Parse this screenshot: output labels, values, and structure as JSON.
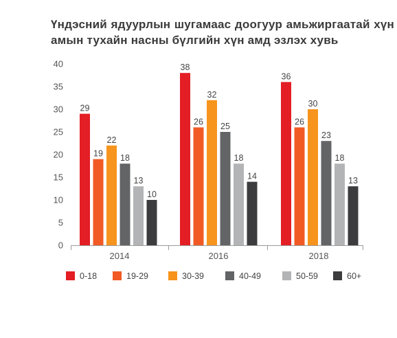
{
  "chart_data": {
    "type": "bar",
    "title": "Үндэсний ядуурлын шугамаас  доогуур амьжиргаатай хүн амын тухайн насны бүлгийн хүн амд эзлэх хувь",
    "categories": [
      "2014",
      "2016",
      "2018"
    ],
    "series": [
      {
        "name": "0-18",
        "color": "#e31e24",
        "values": [
          29,
          38,
          36
        ]
      },
      {
        "name": "19-29",
        "color": "#f15a24",
        "values": [
          19,
          26,
          26
        ]
      },
      {
        "name": "30-39",
        "color": "#f7941d",
        "values": [
          22,
          32,
          30
        ]
      },
      {
        "name": "40-49",
        "color": "#636466",
        "values": [
          18,
          25,
          23
        ]
      },
      {
        "name": "50-59",
        "color": "#b3b4b6",
        "values": [
          13,
          18,
          18
        ]
      },
      {
        "name": "60+",
        "color": "#3c3c3e",
        "values": [
          10,
          14,
          13
        ]
      }
    ],
    "ylim": [
      0,
      40
    ],
    "yticks": [
      0,
      5,
      10,
      15,
      20,
      25,
      30,
      35,
      40
    ],
    "xlabel": "",
    "ylabel": "",
    "grid": false,
    "legend": "bottom"
  }
}
